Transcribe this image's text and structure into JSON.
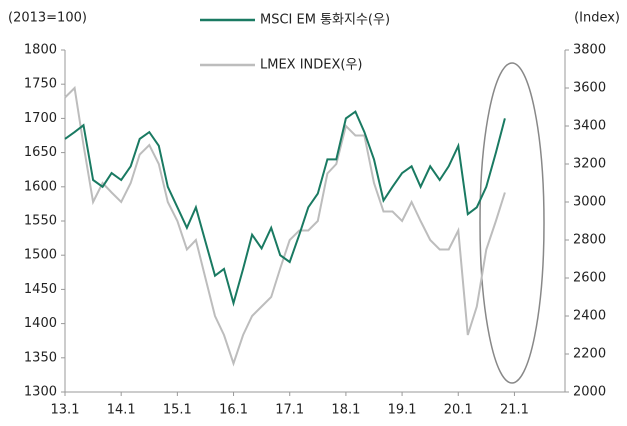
{
  "chart_data": {
    "type": "line",
    "y_unit": "(2013=100)",
    "y2_unit": "(Index)",
    "x": [
      2013.0,
      2013.17,
      2013.33,
      2013.5,
      2013.67,
      2013.83,
      2014.0,
      2014.17,
      2014.33,
      2014.5,
      2014.67,
      2014.83,
      2015.0,
      2015.17,
      2015.33,
      2015.5,
      2015.67,
      2015.83,
      2016.0,
      2016.17,
      2016.33,
      2016.5,
      2016.67,
      2016.83,
      2017.0,
      2017.17,
      2017.33,
      2017.5,
      2017.67,
      2017.83,
      2018.0,
      2018.17,
      2018.33,
      2018.5,
      2018.67,
      2018.83,
      2019.0,
      2019.17,
      2019.33,
      2019.5,
      2019.67,
      2019.83,
      2020.0,
      2020.17,
      2020.33,
      2020.5,
      2020.67,
      2020.83
    ],
    "series": [
      {
        "name": "MSCI EM 통화지수(우)",
        "color": "#1a7a62",
        "axis": "y",
        "values": [
          1670,
          1680,
          1690,
          1610,
          1600,
          1620,
          1610,
          1630,
          1670,
          1680,
          1660,
          1600,
          1570,
          1540,
          1570,
          1520,
          1470,
          1480,
          1430,
          1480,
          1530,
          1510,
          1540,
          1500,
          1490,
          1530,
          1570,
          1590,
          1640,
          1640,
          1700,
          1710,
          1680,
          1640,
          1580,
          1600,
          1620,
          1630,
          1600,
          1630,
          1610,
          1630,
          1660,
          1560,
          1570,
          1600,
          1650,
          1700
        ]
      },
      {
        "name": "LMEX INDEX(우)",
        "color": "#bdbdbd",
        "axis": "y2",
        "values": [
          3550,
          3600,
          3300,
          3000,
          3100,
          3050,
          3000,
          3100,
          3250,
          3300,
          3200,
          3000,
          2900,
          2750,
          2800,
          2600,
          2400,
          2300,
          2150,
          2300,
          2400,
          2450,
          2500,
          2650,
          2800,
          2850,
          2850,
          2900,
          3150,
          3200,
          3400,
          3350,
          3350,
          3100,
          2950,
          2950,
          2900,
          3000,
          2900,
          2800,
          2750,
          2750,
          2850,
          2300,
          2450,
          2750,
          2900,
          3050
        ]
      }
    ],
    "xlim": [
      2013.0,
      2021.9
    ],
    "xticks": [
      {
        "value": 2013,
        "label": "13.1"
      },
      {
        "value": 2014,
        "label": "14.1"
      },
      {
        "value": 2015,
        "label": "15.1"
      },
      {
        "value": 2016,
        "label": "16.1"
      },
      {
        "value": 2017,
        "label": "17.1"
      },
      {
        "value": 2018,
        "label": "18.1"
      },
      {
        "value": 2019,
        "label": "19.1"
      },
      {
        "value": 2020,
        "label": "20.1"
      },
      {
        "value": 2021,
        "label": "21.1"
      }
    ],
    "ylim": [
      1300,
      1800
    ],
    "yticks": [
      1300,
      1350,
      1400,
      1450,
      1500,
      1550,
      1600,
      1650,
      1700,
      1750,
      1800
    ],
    "y2lim": [
      2000,
      3800
    ],
    "y2ticks": [
      2000,
      2200,
      2400,
      2600,
      2800,
      3000,
      3200,
      3400,
      3600,
      3800
    ]
  }
}
